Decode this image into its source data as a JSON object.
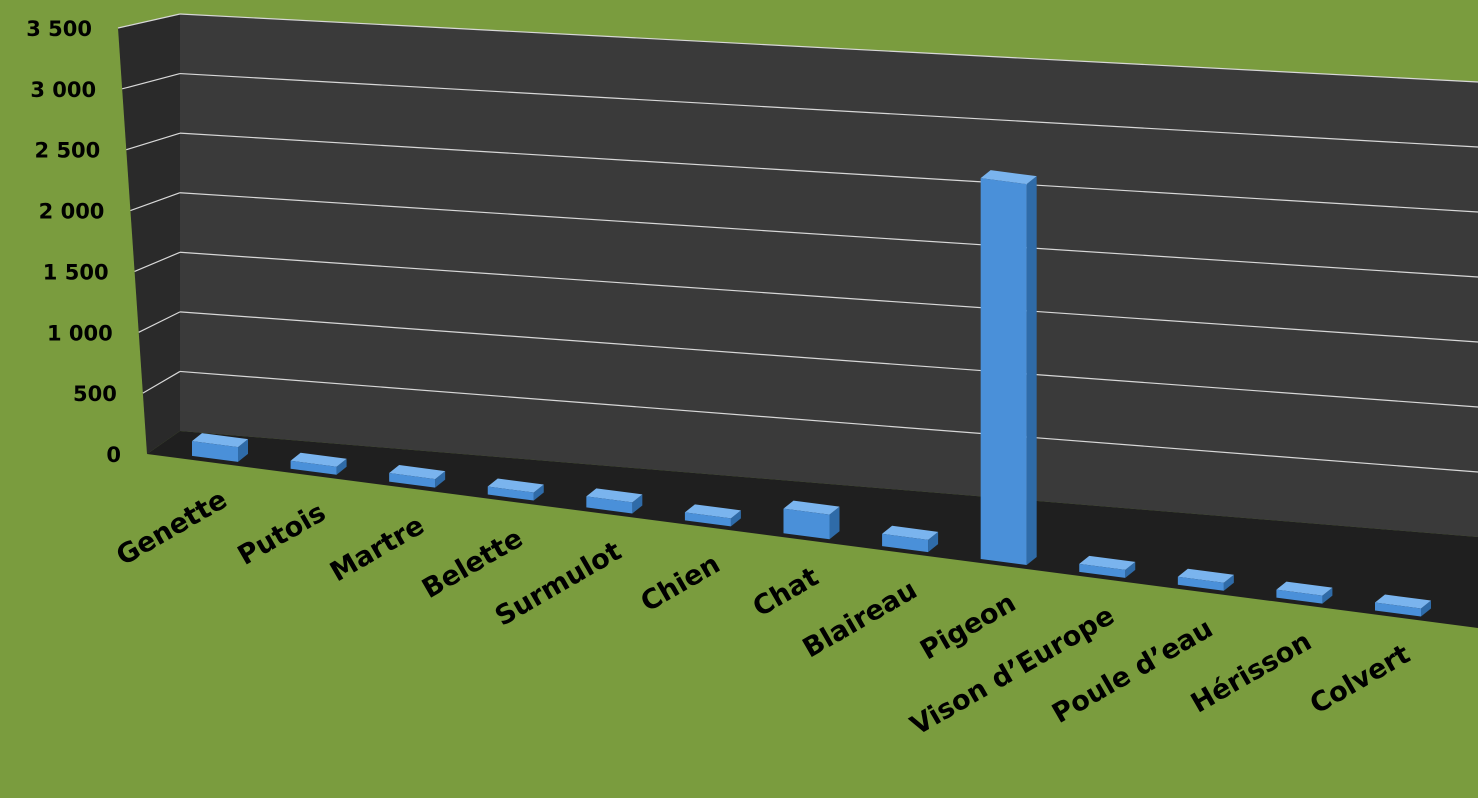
{
  "chart_data": {
    "type": "bar",
    "title": "",
    "xlabel": "",
    "ylabel": "",
    "ylim": [
      0,
      3500
    ],
    "yticks": [
      "0",
      "500",
      "1 000",
      "1 500",
      "2 000",
      "2 500",
      "3 000",
      "3 500"
    ],
    "categories": [
      "Genette",
      "Putois",
      "Martre",
      "Belette",
      "Surmulot",
      "Chien",
      "Chat",
      "Blaireau",
      "Pigeon",
      "Vison d’Europe",
      "Poule d’eau",
      "Hérisson",
      "Colvert"
    ],
    "values": [
      120,
      40,
      70,
      20,
      90,
      35,
      200,
      100,
      3100,
      35,
      40,
      55,
      40
    ],
    "grid": true,
    "legend": "none",
    "colors": {
      "background": "#7a9c3e",
      "back_wall": "#3a3a3a",
      "side_wall": "#2a2a2a",
      "floor": "#1f1f1f",
      "gridline": "#d8d8d8",
      "bar_front": "#4a90d9",
      "bar_top": "#7ab4ee",
      "bar_side": "#2f6ba8"
    }
  }
}
